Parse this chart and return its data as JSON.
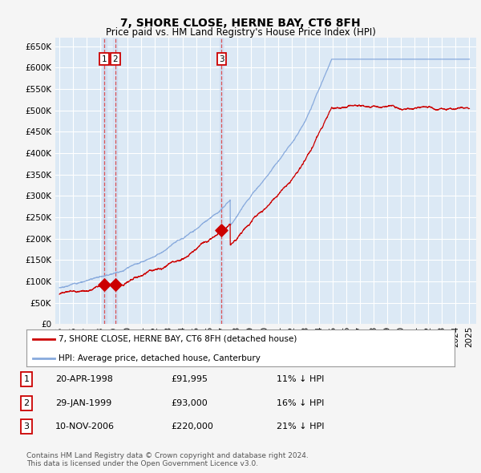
{
  "title": "7, SHORE CLOSE, HERNE BAY, CT6 8FH",
  "subtitle": "Price paid vs. HM Land Registry's House Price Index (HPI)",
  "ylim": [
    0,
    670000
  ],
  "yticks": [
    0,
    50000,
    100000,
    150000,
    200000,
    250000,
    300000,
    350000,
    400000,
    450000,
    500000,
    550000,
    600000,
    650000
  ],
  "background_color": "#dce9f5",
  "grid_color": "#ffffff",
  "transaction_color": "#cc0000",
  "hpi_color": "#88aadd",
  "vline_color": "#dd4444",
  "vline_fill": "#e8c0c0",
  "transactions": [
    {
      "date_num": 1998.3,
      "price": 91995,
      "label": "1"
    },
    {
      "date_num": 1999.08,
      "price": 93000,
      "label": "2"
    },
    {
      "date_num": 2006.87,
      "price": 220000,
      "label": "3"
    }
  ],
  "legend_property_label": "7, SHORE CLOSE, HERNE BAY, CT6 8FH (detached house)",
  "legend_hpi_label": "HPI: Average price, detached house, Canterbury",
  "table_entries": [
    {
      "num": "1",
      "date": "20-APR-1998",
      "price": "£91,995",
      "hpi": "11% ↓ HPI"
    },
    {
      "num": "2",
      "date": "29-JAN-1999",
      "price": "£93,000",
      "hpi": "16% ↓ HPI"
    },
    {
      "num": "3",
      "date": "10-NOV-2006",
      "price": "£220,000",
      "hpi": "21% ↓ HPI"
    }
  ],
  "footnote": "Contains HM Land Registry data © Crown copyright and database right 2024.\nThis data is licensed under the Open Government Licence v3.0.",
  "title_fontsize": 10,
  "subtitle_fontsize": 8.5,
  "tick_fontsize": 7.5
}
